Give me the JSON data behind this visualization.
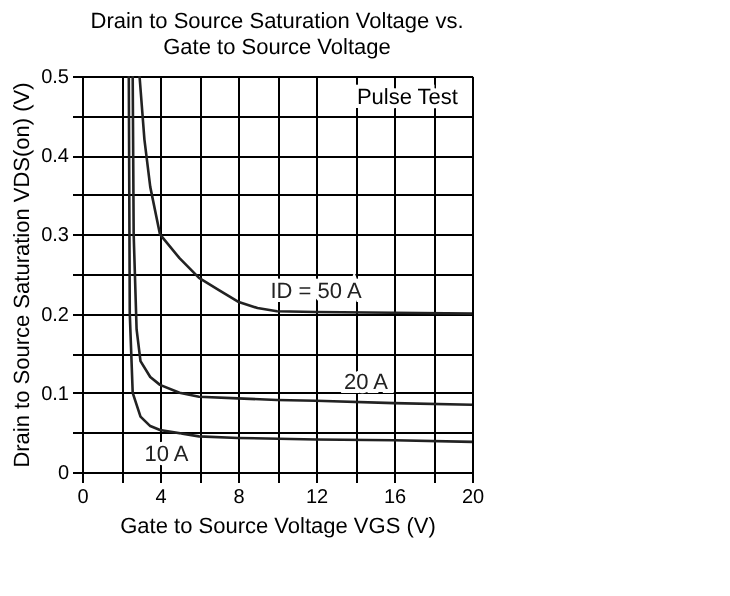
{
  "chart_data": {
    "type": "line",
    "title": [
      "Drain to Source Saturation Voltage vs.",
      "Gate to Source Voltage"
    ],
    "xlabel": "Gate to Source Voltage  VGS  (V)",
    "ylabel": "Drain to Source Saturation  VDS(on)  (V)",
    "annotations": [
      "Pulse Test"
    ],
    "xlim": [
      0,
      20
    ],
    "ylim": [
      0,
      0.5
    ],
    "xticks": [
      0,
      {
        "value": 2,
        "label": null
      },
      4,
      {
        "value": 6,
        "label": null
      },
      8,
      {
        "value": 10,
        "label": null
      },
      12,
      {
        "value": 14,
        "label": null
      },
      16,
      {
        "value": 18,
        "label": null
      },
      20
    ],
    "yticks": [
      0,
      {
        "value": 0.05,
        "label": null
      },
      0.1,
      {
        "value": 0.15,
        "label": null
      },
      0.2,
      {
        "value": 0.25,
        "label": null
      },
      0.3,
      {
        "value": 0.35,
        "label": null
      },
      0.4,
      {
        "value": 0.45,
        "label": null
      },
      0.5
    ],
    "grid": true,
    "marker": "none",
    "line_style": "solid",
    "series": [
      {
        "name": "ID = 50 A",
        "color": "#222222",
        "x": [
          2.95,
          3.2,
          3.5,
          4,
          5,
          6,
          7,
          8,
          9,
          10,
          12,
          16,
          20
        ],
        "values": [
          0.5,
          0.42,
          0.36,
          0.3,
          0.27,
          0.245,
          0.23,
          0.215,
          0.207,
          0.203,
          0.202,
          0.201,
          0.2
        ]
      },
      {
        "name": "20 A",
        "color": "#222222",
        "x": [
          2.6,
          2.65,
          2.8,
          3,
          3.5,
          4,
          5,
          6,
          8,
          10,
          12,
          16,
          20
        ],
        "values": [
          0.5,
          0.3,
          0.18,
          0.14,
          0.12,
          0.11,
          0.1,
          0.095,
          0.093,
          0.091,
          0.09,
          0.087,
          0.085
        ]
      },
      {
        "name": "10 A",
        "color": "#222222",
        "x": [
          2.4,
          2.45,
          2.6,
          3,
          3.5,
          4,
          6,
          8,
          12,
          16,
          20
        ],
        "values": [
          0.5,
          0.2,
          0.1,
          0.07,
          0.058,
          0.053,
          0.045,
          0.043,
          0.041,
          0.04,
          0.038
        ]
      }
    ]
  }
}
